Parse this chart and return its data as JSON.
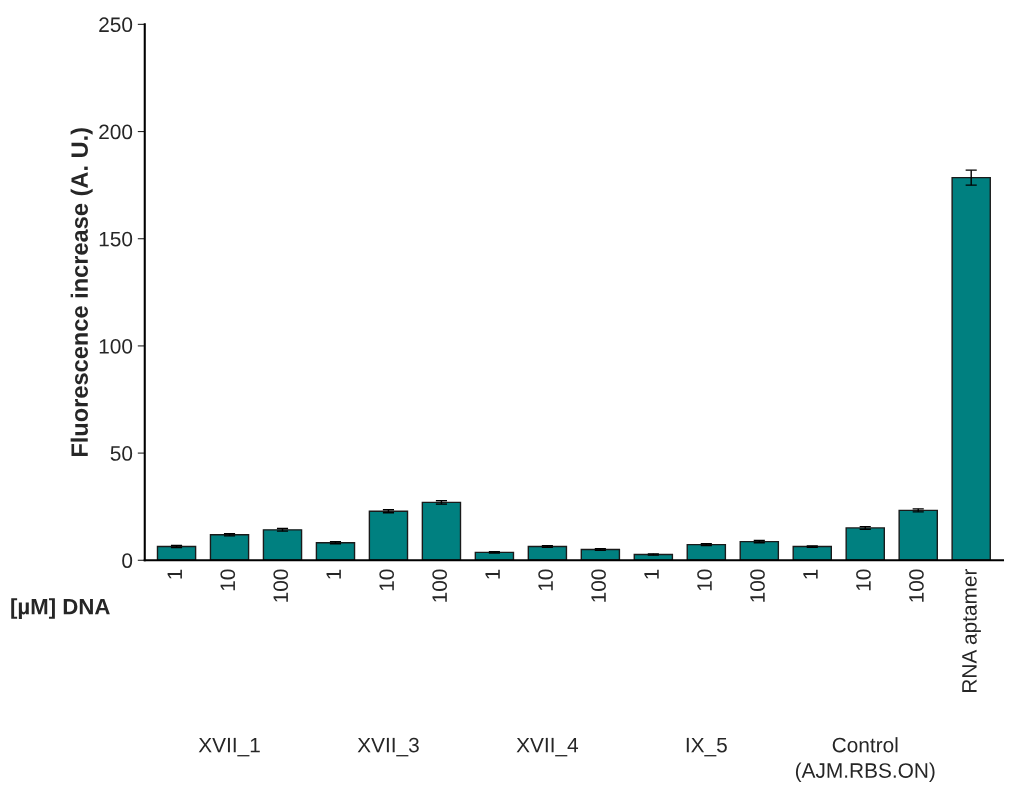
{
  "chart_data": {
    "type": "bar",
    "ylabel": "Fluorescence increase (A. U.)",
    "xlabel": "[µM] DNA",
    "categories": [
      "1",
      "10",
      "100",
      "1",
      "10",
      "100",
      "1",
      "10",
      "100",
      "1",
      "10",
      "100",
      "1",
      "10",
      "100",
      "RNA aptamer"
    ],
    "values": [
      6.4,
      11.9,
      14.2,
      8.2,
      22.9,
      27.0,
      3.7,
      6.4,
      5.0,
      2.7,
      7.3,
      8.7,
      6.4,
      15.1,
      23.3,
      178.5
    ],
    "errors": [
      0.5,
      0.5,
      0.6,
      0.5,
      0.7,
      0.8,
      0.3,
      0.4,
      0.4,
      0.3,
      0.4,
      0.5,
      0.3,
      0.6,
      0.7,
      3.5
    ],
    "color": "#008080",
    "ylim": [
      0,
      250
    ],
    "yticks": [
      0,
      50,
      100,
      150,
      200,
      250
    ],
    "grid": false,
    "legend": false,
    "annotations": [
      "XVII_1",
      "XVII_3",
      "XVII_4",
      "IX_5",
      "Control\n(AJM.RBS.ON)"
    ]
  }
}
